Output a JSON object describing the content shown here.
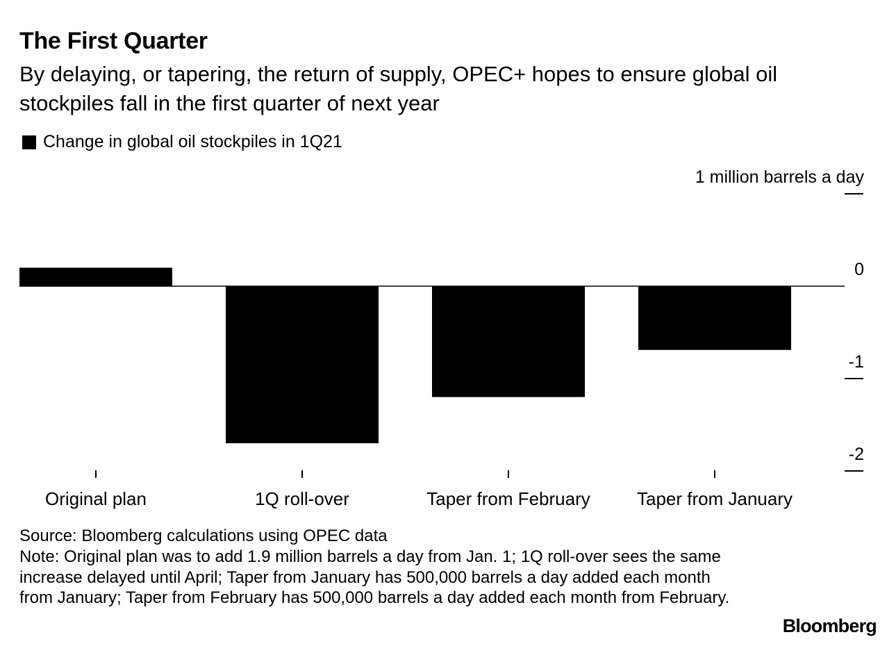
{
  "chart_data": {
    "type": "bar",
    "title": "The First Quarter",
    "subtitle": "By delaying, or tapering, the return of supply, OPEC+ hopes to ensure global oil stockpiles fall in the first quarter of next year",
    "series": [
      {
        "name": "Change in global oil stockpiles in 1Q21",
        "values": [
          0.2,
          -1.7,
          -1.2,
          -0.69
        ]
      }
    ],
    "categories": [
      "Original plan",
      "1Q roll-over",
      "Taper from February",
      "Taper from January"
    ],
    "y_ticks": [
      1,
      0,
      -1,
      -2
    ],
    "y_tick_labels": [
      "1 million barrels a day",
      "0",
      "-1",
      "-2"
    ],
    "ylim": [
      -2,
      1
    ],
    "grid": false,
    "legend_position": "top-left",
    "colors": {
      "bar": "#000000",
      "axis": "#000000"
    }
  },
  "footer": {
    "source": "Source: Bloomberg calculations using OPEC data",
    "note": "Note: Original plan was to add 1.9 million barrels a day from Jan. 1; 1Q roll-over sees the same increase delayed until April; Taper from January has 500,000 barrels a day added each month from January; Taper from February has 500,000 barrels a day added each month from February.",
    "brand": "Bloomberg"
  }
}
